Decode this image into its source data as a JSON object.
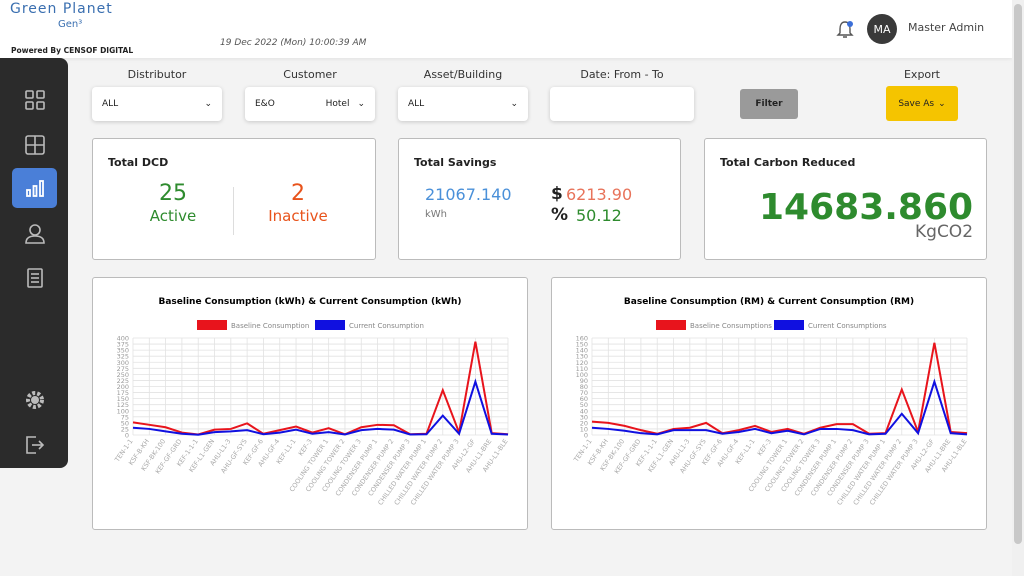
{
  "header": {
    "brand": "Green Planet",
    "sub_brand": "Gen³",
    "powered_by": "Powered By CENSOF DIGITAL",
    "datetime": "19 Dec 2022 (Mon) 10:00:39 AM",
    "user_initials": "MA",
    "user_name": "Master Admin"
  },
  "filters": {
    "distributor": {
      "label": "Distributor",
      "value": "ALL"
    },
    "customer": {
      "label": "Customer",
      "value": "E&O",
      "value2": "Hotel"
    },
    "asset": {
      "label": "Asset/Building",
      "value": "ALL"
    },
    "date": {
      "label": "Date: From - To"
    },
    "filter_button": "Filter",
    "export": {
      "label": "Export",
      "button": "Save As"
    }
  },
  "cards": {
    "dcd": {
      "title": "Total DCD",
      "active_count": "25",
      "active_label": "Active",
      "inactive_count": "2",
      "inactive_label": "Inactive"
    },
    "savings": {
      "title": "Total Savings",
      "energy": "21067.140",
      "energy_unit": "kWh",
      "currency_symbol": "$",
      "money": "6213.90",
      "percent_symbol": "%",
      "percent": "50.12"
    },
    "carbon": {
      "title": "Total Carbon Reduced",
      "value": "14683.860",
      "unit": "KgCO2"
    }
  },
  "chart_data": [
    {
      "type": "line",
      "title": "Baseline Consumption (kWh) & Current Consumption (kWh)",
      "categories": [
        "TEN-1-1",
        "KSF-B-KH",
        "KSF-BK-100",
        "KEF-GF-GRD",
        "KEF-1-1-1",
        "KEF-L1-GEN",
        "AHU-L1-3",
        "AHU-GF-SYS",
        "KEF-GF-6",
        "AHU-GF-4",
        "KEF-L1-1",
        "KEF-3",
        "COOLING TOWER 1",
        "COOLING TOWER 2",
        "COOLING TOWER 3",
        "CONDENSER PUMP 1",
        "CONDENSER PUMP 2",
        "CONDENSER PUMP 3",
        "CHILLED WATER PUMP 1",
        "CHILLED WATER PUMP 2",
        "CHILLED WATER PUMP 3",
        "AHU-L2-GF",
        "AHU-L1-BRE",
        "AHU-L1-BLE"
      ],
      "series": [
        {
          "name": "Baseline Consumption",
          "color": "#e8141c",
          "values": [
            52,
            42,
            32,
            10,
            2,
            22,
            25,
            48,
            5,
            20,
            35,
            10,
            28,
            3,
            32,
            42,
            40,
            3,
            5,
            185,
            10,
            385,
            8,
            3
          ]
        },
        {
          "name": "Current Consumption",
          "color": "#1010e0",
          "values": [
            30,
            25,
            15,
            5,
            1,
            12,
            15,
            20,
            3,
            10,
            22,
            5,
            12,
            2,
            20,
            25,
            22,
            2,
            3,
            80,
            5,
            220,
            5,
            2
          ]
        }
      ],
      "ylim": [
        0,
        400
      ],
      "yticks": [
        0,
        25,
        50,
        75,
        100,
        125,
        150,
        175,
        200,
        225,
        250,
        275,
        300,
        325,
        350,
        375,
        400
      ],
      "grid": true
    },
    {
      "type": "line",
      "title": "Baseline Consumption (RM) & Current Consumption (RM)",
      "categories": [
        "TEN-1-1",
        "KSF-B-KH",
        "KSF-BK-100",
        "KEF-GF-GRD",
        "KEF-1-1-1",
        "KEF-L1-GEN",
        "AHU-L1-3",
        "AHU-GF-SYS",
        "KEF-GF-6",
        "AHU-GF-4",
        "KEF-L1-1",
        "KEF-3",
        "COOLING TOWER 1",
        "COOLING TOWER 2",
        "COOLING TOWER 3",
        "CONDENSER PUMP 1",
        "CONDENSER PUMP 2",
        "CONDENSER PUMP 3",
        "CHILLED WATER PUMP 1",
        "CHILLED WATER PUMP 2",
        "CHILLED WATER PUMP 3",
        "AHU-L2-GF",
        "AHU-L1-BRE",
        "AHU-L1-BLE"
      ],
      "series": [
        {
          "name": "Baseline Consumptions",
          "color": "#e8141c",
          "values": [
            22,
            20,
            15,
            8,
            2,
            10,
            12,
            20,
            3,
            8,
            15,
            5,
            10,
            2,
            12,
            18,
            18,
            2,
            3,
            75,
            5,
            152,
            5,
            3
          ]
        },
        {
          "name": "Current Consumptions",
          "color": "#1010e0",
          "values": [
            12,
            10,
            7,
            3,
            1,
            8,
            8,
            8,
            2,
            5,
            10,
            3,
            7,
            1,
            10,
            10,
            8,
            1,
            2,
            35,
            3,
            88,
            3,
            1
          ]
        }
      ],
      "ylim": [
        0,
        160
      ],
      "yticks": [
        0,
        10,
        20,
        30,
        40,
        50,
        60,
        70,
        80,
        90,
        100,
        110,
        120,
        130,
        140,
        150,
        160
      ],
      "grid": true
    }
  ]
}
